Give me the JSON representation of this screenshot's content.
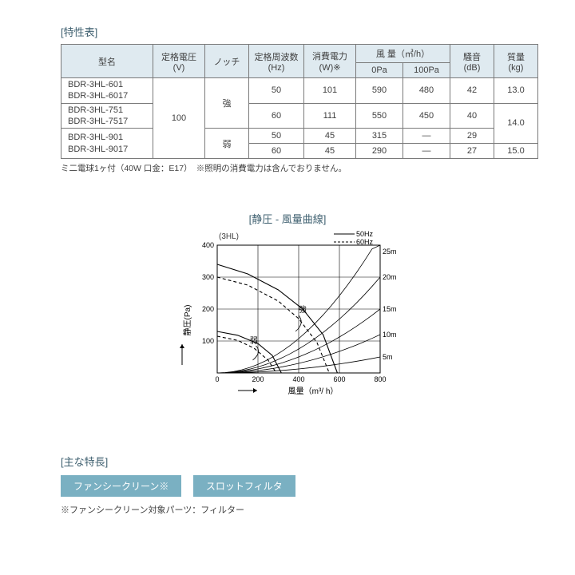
{
  "specTable": {
    "title": "[特性表]",
    "header": {
      "model": "型名",
      "voltage": "定格電圧\n(V)",
      "notch": "ノッチ",
      "freq": "定格周波数\n(Hz)",
      "power": "消費電力\n(W)※",
      "airflow": "風 量（㎥/h）",
      "airflow0": "0Pa",
      "airflow100": "100Pa",
      "noise": "騒音\n(dB)",
      "mass": "質量\n(kg)"
    },
    "voltageValue": "100",
    "notchStrong": "強",
    "notchWeak": "弱",
    "massA": "13.0",
    "massB": "14.0",
    "massC": "15.0",
    "rows": [
      {
        "model1": "BDR-3HL-601",
        "model2": "BDR-3HL-6017",
        "freq": "50",
        "power": "101",
        "a0": "590",
        "a100": "480",
        "noise": "42"
      },
      {
        "model1": "BDR-3HL-751",
        "model2": "BDR-3HL-7517",
        "freq": "60",
        "power": "111",
        "a0": "550",
        "a100": "450",
        "noise": "40"
      },
      {
        "model1": "BDR-3HL-901",
        "model2": "BDR-3HL-9017",
        "freq": "50",
        "power": "45",
        "a0": "315",
        "a100": "—",
        "noise": "29"
      },
      {
        "model1": "",
        "model2": "",
        "freq": "60",
        "power": "45",
        "a0": "290",
        "a100": "—",
        "noise": "27"
      }
    ],
    "note": "ミ二電球1ヶ付（40W 口金：E17）　※照明の消費電力は含んでおりません。"
  },
  "chart": {
    "title": "[静圧 - 風量曲線]",
    "subtitleModel": "(3HL)",
    "legend50": "50Hz",
    "legend60": "60Hz",
    "xlabel": "風量（m³/ h）",
    "ylabel": "静圧(Pa)",
    "xlim": [
      0,
      800
    ],
    "ylim": [
      0,
      400
    ],
    "xticks": [
      0,
      200,
      400,
      600,
      800
    ],
    "yticks": [
      0,
      100,
      200,
      300,
      400
    ],
    "ductLabels": [
      "5m",
      "10m",
      "15m",
      "20m",
      "25m"
    ],
    "annoStrong": "強",
    "annoWeak": "弱",
    "colors": {
      "axis": "#000000",
      "grid": "#000000",
      "curve": "#000000",
      "text": "#404040"
    },
    "linewidth": 1,
    "fontSizes": {
      "axis": 10,
      "tick": 9,
      "label": 10
    }
  },
  "features": {
    "title": "[主な特長]",
    "tag1": "ファンシークリーン※",
    "tag2": "スロットフィルタ",
    "note": "※ファンシークリーン対象パーツ：フィルター",
    "tagColor": "#7ab0c2"
  }
}
